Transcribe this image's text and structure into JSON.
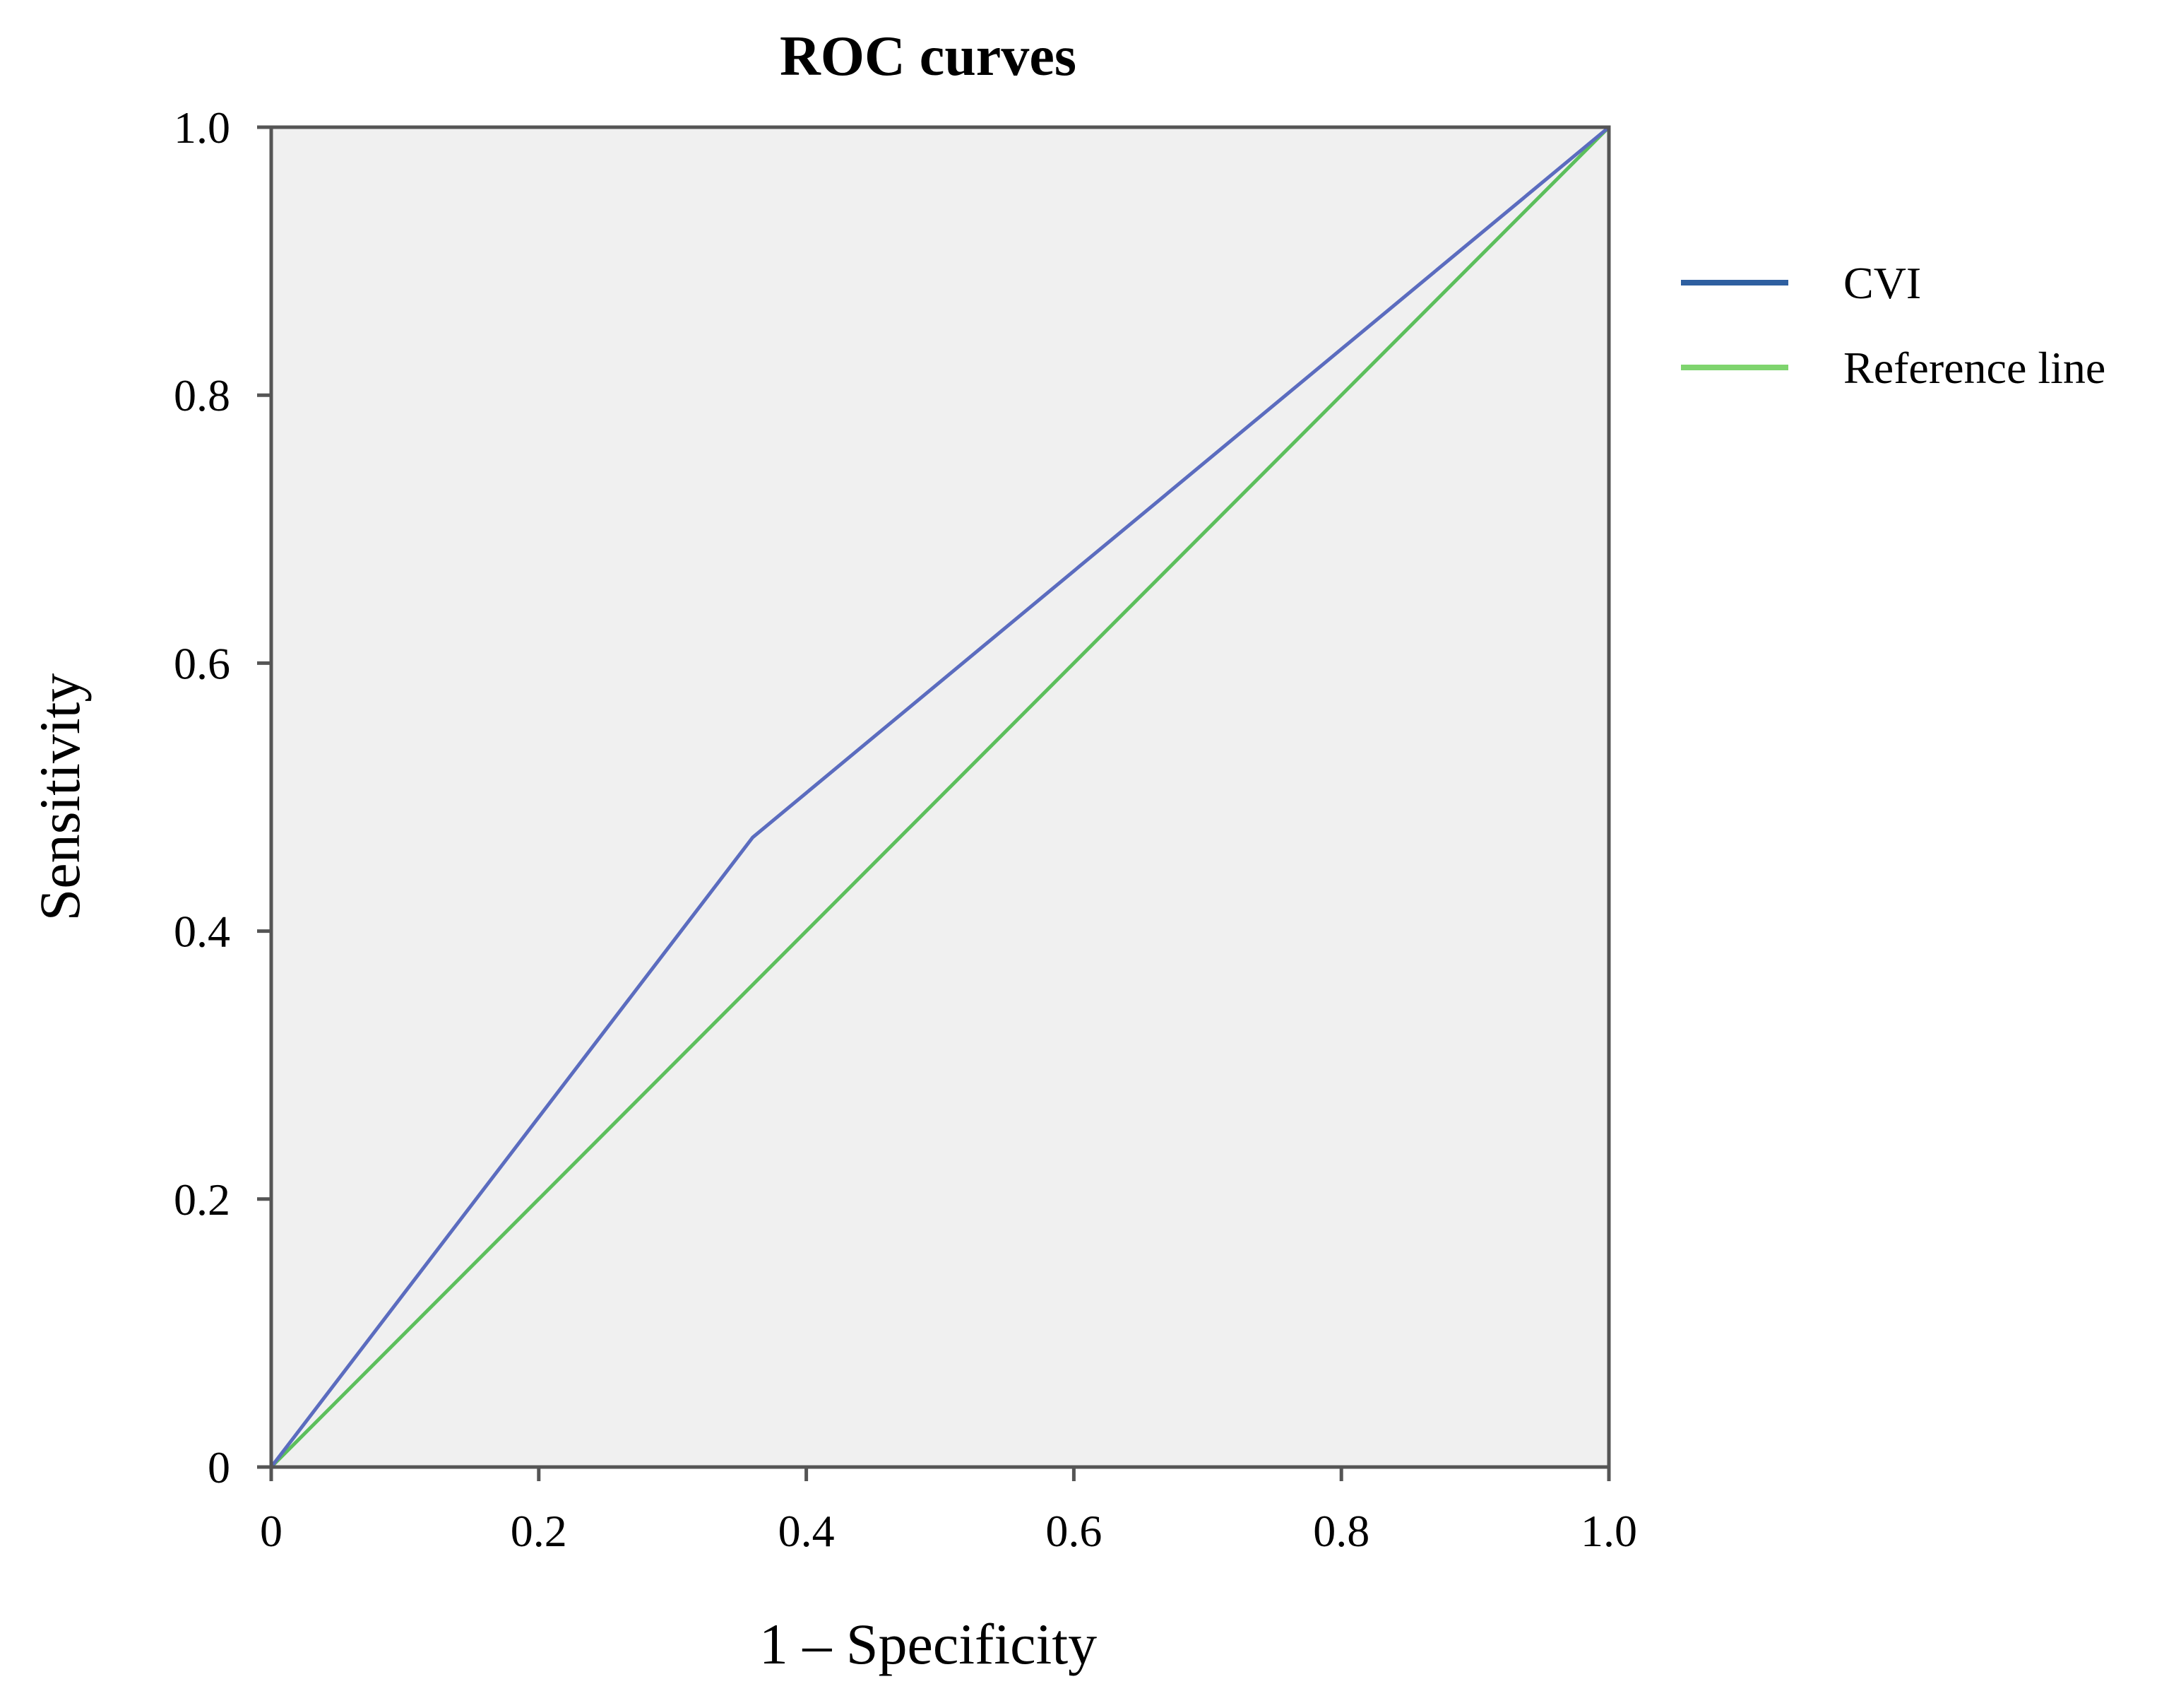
{
  "chart_data": {
    "type": "line",
    "title": "ROC curves",
    "xlabel": "1 – Specificity",
    "ylabel": "Sensitivity",
    "xlim": [
      0,
      1
    ],
    "ylim": [
      0,
      1
    ],
    "x_ticks": [
      0,
      0.2,
      0.4,
      0.6,
      0.8,
      1.0
    ],
    "x_tick_labels": [
      "0",
      "0.2",
      "0.4",
      "0.6",
      "0.8",
      "1.0"
    ],
    "y_ticks": [
      0,
      0.2,
      0.4,
      0.6,
      0.8,
      1.0
    ],
    "y_tick_labels": [
      "0",
      "0.2",
      "0.4",
      "0.6",
      "0.8",
      "1.0"
    ],
    "grid": false,
    "legend_position": "right",
    "plot_background": "#f0f0f0",
    "series": [
      {
        "name": "CVI",
        "color": "#5b6cbf",
        "legend_color": "#2e5fa0",
        "x": [
          0,
          0.36,
          1.0
        ],
        "y": [
          0,
          0.47,
          1.0
        ]
      },
      {
        "name": "Reference line",
        "color": "#5cbf5c",
        "legend_color": "#7ed46e",
        "x": [
          0,
          1.0
        ],
        "y": [
          0,
          1.0
        ]
      }
    ]
  }
}
